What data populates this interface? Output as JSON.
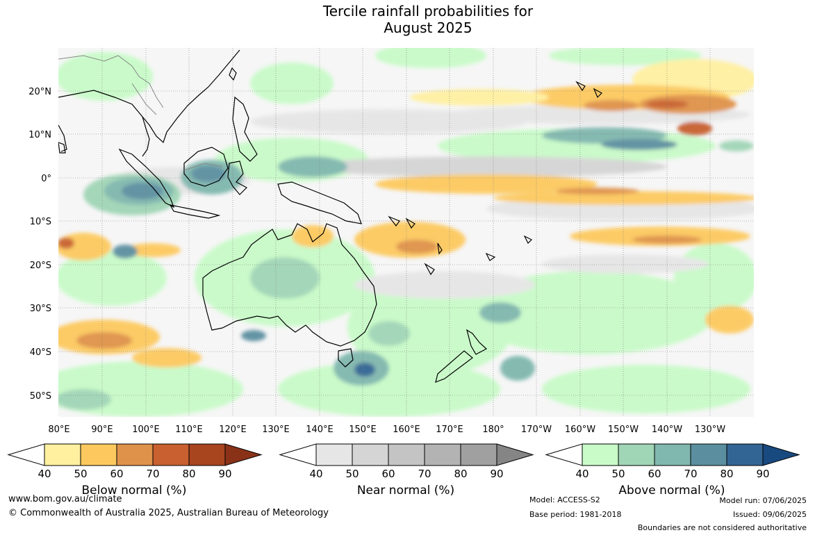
{
  "title": {
    "line1": "Tercile rainfall probabilities for",
    "line2": "August 2025"
  },
  "map": {
    "latitude_labels": [
      "20°N",
      "10°N",
      "0°",
      "10°S",
      "20°S",
      "30°S",
      "40°S",
      "50°S"
    ],
    "longitude_labels": [
      "80°E",
      "90°E",
      "100°E",
      "110°E",
      "120°E",
      "130°E",
      "140°E",
      "150°E",
      "160°E",
      "170°E",
      "180°",
      "170°W",
      "160°W",
      "150°W",
      "140°W",
      "130°W"
    ]
  },
  "colorbars": [
    {
      "name": "below-normal",
      "title": "Below normal (%)",
      "ticks": [
        "40",
        "50",
        "60",
        "70",
        "80",
        "90"
      ],
      "colors": [
        "#ffffff",
        "#fff0a0",
        "#fdc95e",
        "#df924a",
        "#c8602f",
        "#a8441e",
        "#8a3218"
      ]
    },
    {
      "name": "near-normal",
      "title": "Near normal (%)",
      "ticks": [
        "40",
        "50",
        "60",
        "70",
        "80",
        "90"
      ],
      "colors": [
        "#ffffff",
        "#e6e6e6",
        "#d5d5d5",
        "#c4c4c4",
        "#b3b3b3",
        "#a0a0a0",
        "#858585"
      ]
    },
    {
      "name": "above-normal",
      "title": "Above normal (%)",
      "ticks": [
        "40",
        "50",
        "60",
        "70",
        "80",
        "90"
      ],
      "colors": [
        "#ffffff",
        "#c8fbc8",
        "#a0d5b6",
        "#80b7ae",
        "#5b8fa0",
        "#336594",
        "#194a7f"
      ]
    }
  ],
  "footer": {
    "website": "www.bom.gov.au/climate",
    "copyright": "© Commonwealth of Australia 2025, Australian Bureau of Meteorology",
    "model": "Model: ACCESS-S2",
    "base_period": "Base period: 1981-2018",
    "model_run": "Model run: 07/06/2025",
    "issued": "Issued: 09/06/2025",
    "disclaimer": "Boundaries are not considered authoritative"
  }
}
